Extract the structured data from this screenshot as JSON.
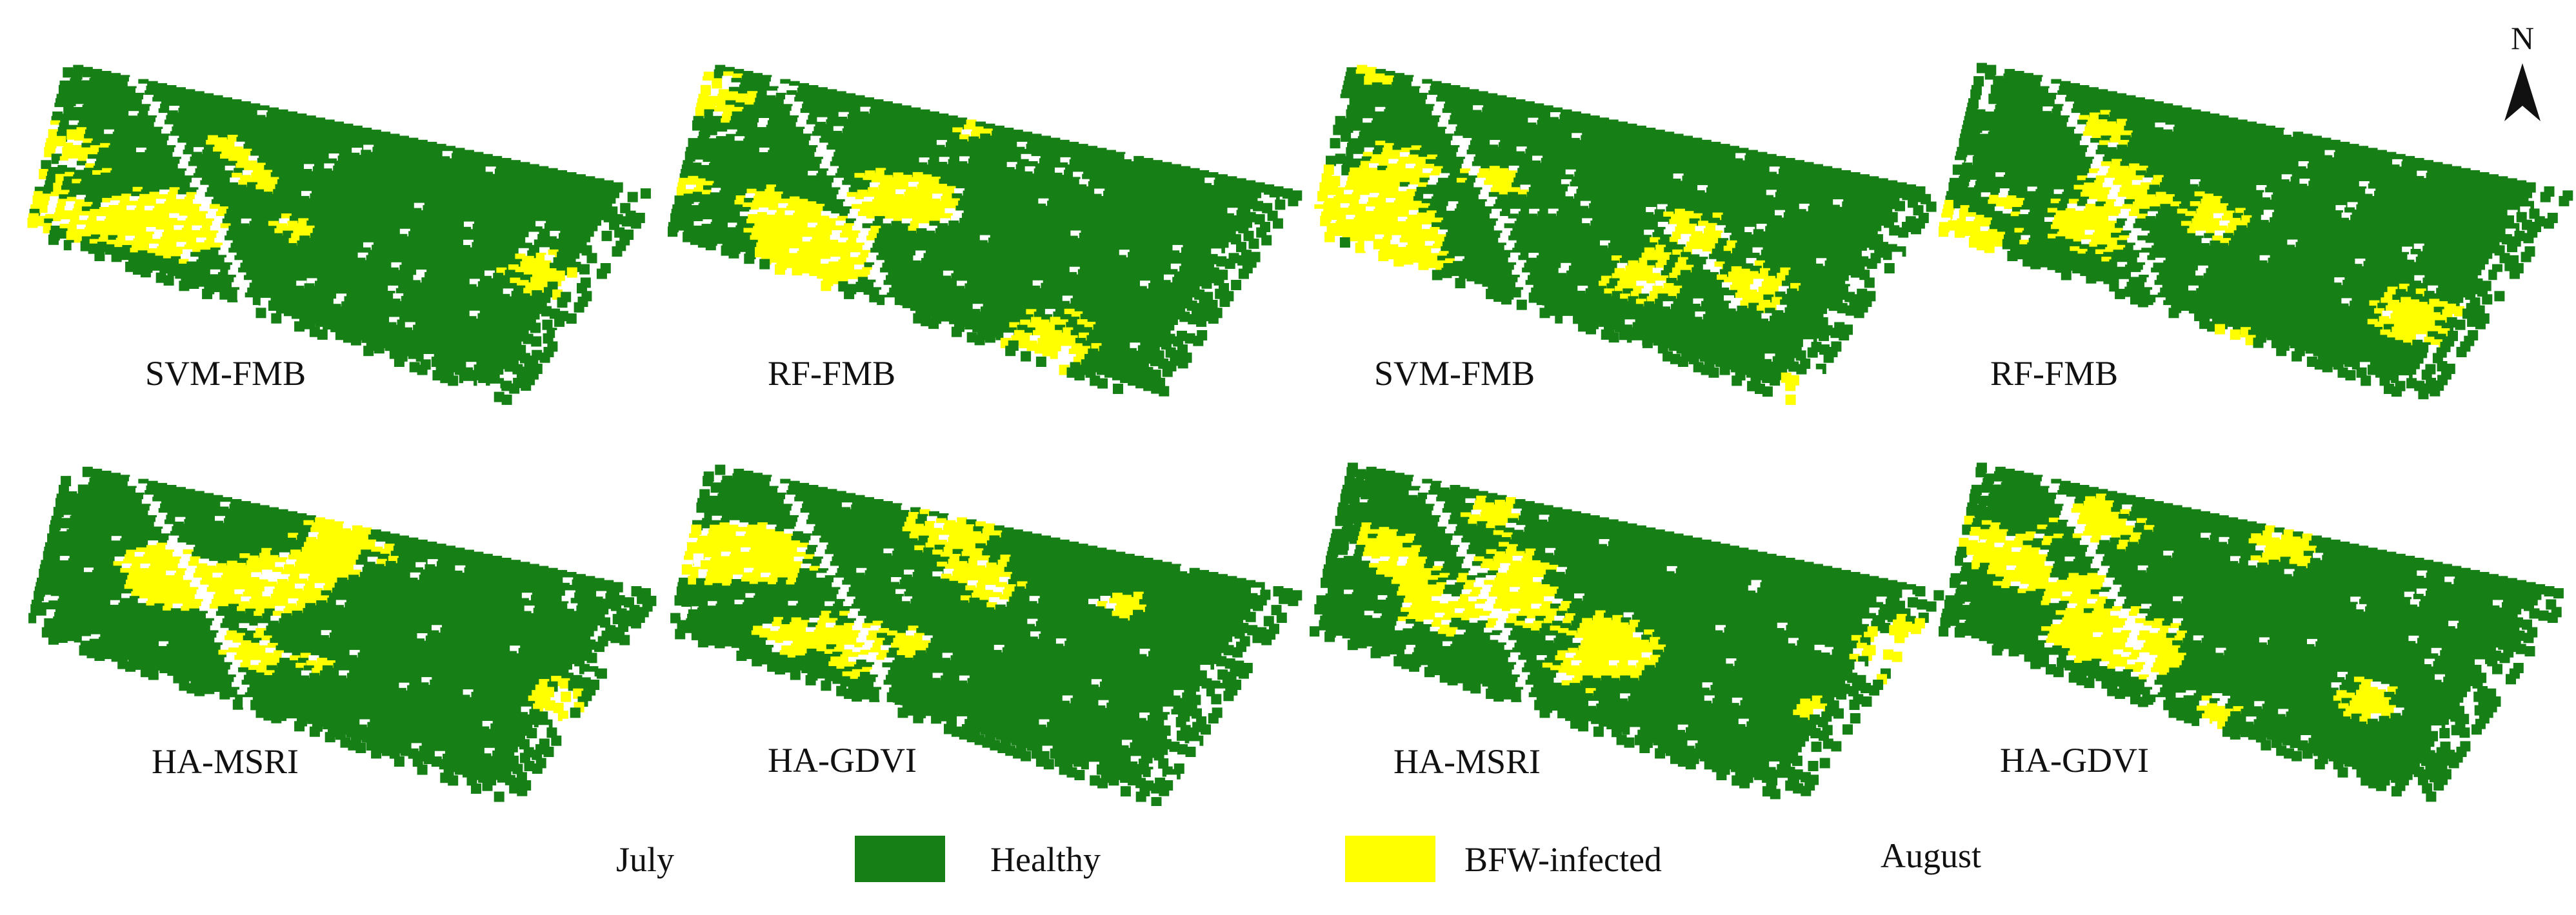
{
  "colors": {
    "healthy": "#168016",
    "infected": "#ffff00",
    "background": "#ffffff"
  },
  "north_arrow": {
    "letter": "N",
    "icon": "north-arrow-icon"
  },
  "panels": [
    {
      "month": "July",
      "method": "SVM-FMB",
      "infected_share": 0.2
    },
    {
      "month": "July",
      "method": "RF-FMB",
      "infected_share": 0.19
    },
    {
      "month": "August",
      "method": "SVM-FMB",
      "infected_share": 0.18
    },
    {
      "month": "August",
      "method": "RF-FMB",
      "infected_share": 0.16
    },
    {
      "month": "July",
      "method": "HA-MSRI",
      "infected_share": 0.19
    },
    {
      "month": "July",
      "method": "HA-GDVI",
      "infected_share": 0.21
    },
    {
      "month": "August",
      "method": "HA-MSRI",
      "infected_share": 0.22
    },
    {
      "month": "August",
      "method": "HA-GDVI",
      "infected_share": 0.24
    }
  ],
  "legend": {
    "july_label": "July",
    "healthy_label": "Healthy",
    "infected_label": "BFW-infected",
    "august_label": "August"
  }
}
